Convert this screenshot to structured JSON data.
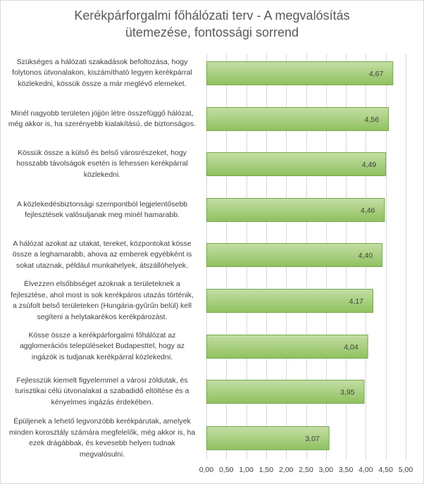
{
  "chart_data": {
    "type": "bar",
    "orientation": "horizontal",
    "title_lines": [
      "Kerékpárforgalmi főhálózati terv - A megvalósítás",
      "ütemezése, fontossági sorrend"
    ],
    "categories": [
      [
        "Szükséges a hálózati szakadások befoltozása, hogy",
        "folytonos útvonalakon, kiszámítható legyen kerékpárral",
        "közlekedni, kössük össze a már meglévő elemeket."
      ],
      [
        "Minél nagyobb területen jöjjön létre összefüggő hálózat,",
        "még akkor is, ha szerényebb kialakítású, de biztonságos."
      ],
      [
        "Kössük össze a külső és belső városrészeket, hogy",
        "hosszabb távolságok esetén is lehessen kerékpárral",
        "közlekedni."
      ],
      [
        "A közlekedésbiztonsági szempontból legjelentősebb",
        "fejlesztések valósuljanak meg minél hamarabb."
      ],
      [
        "A hálózat azokat az utakat, tereket, központokat kösse",
        "össze a leghamarabb, ahova az emberek egyébként is",
        "sokat utaznak, például munkahelyek, átszállóhelyek."
      ],
      [
        "Élvezzen elsőbbséget azoknak a területeknek a",
        "fejlesztése, ahol most is sok kerékpáros utazás történik,",
        "a zsúfolt belső területeken (Hungária-gyűrűn belül) kell",
        "segíteni a helytakarékos kerékpározást."
      ],
      [
        "Kösse össze a kerékpárforgalmi főhálózat az",
        "agglomerációs településeket Budapesttel, hogy az",
        "ingázók is tudjanak kerékpárral közlekedni."
      ],
      [
        "Fejlesszük kiemelt figyelemmel a városi zöldutak, és",
        "turisztikai célú útvonalakat a szabadidő eltöltése és a",
        "kényelmes ingázás érdekében."
      ],
      [
        "Épüljenek a lehető legvonzóbb kerékpárutak, amelyek",
        "minden korosztály számára megfelelők, még akkor is, ha",
        "ezek drágábbak, és kevesebb helyen tudnak",
        "megvalósulni."
      ]
    ],
    "values": [
      4.67,
      4.56,
      4.49,
      4.46,
      4.4,
      4.17,
      4.04,
      3.95,
      3.07
    ],
    "data_labels": [
      "4,67",
      "4,56",
      "4,49",
      "4,46",
      "4,40",
      "4,17",
      "4,04",
      "3,95",
      "3,07"
    ],
    "xlim": [
      0,
      5
    ],
    "x_ticks": [
      0,
      0.5,
      1,
      1.5,
      2,
      2.5,
      3,
      3.5,
      4,
      4.5,
      5
    ],
    "x_tick_labels": [
      "0,00",
      "0,50",
      "1,00",
      "1,50",
      "2,00",
      "2,50",
      "3,00",
      "3,50",
      "4,00",
      "4,50",
      "5,00"
    ],
    "grid": true,
    "bar_fill_top": "#c4dea4",
    "bar_fill_bottom": "#8fc15f",
    "bar_border": "#76a84e",
    "gridline_color": "#d9d9d9"
  }
}
